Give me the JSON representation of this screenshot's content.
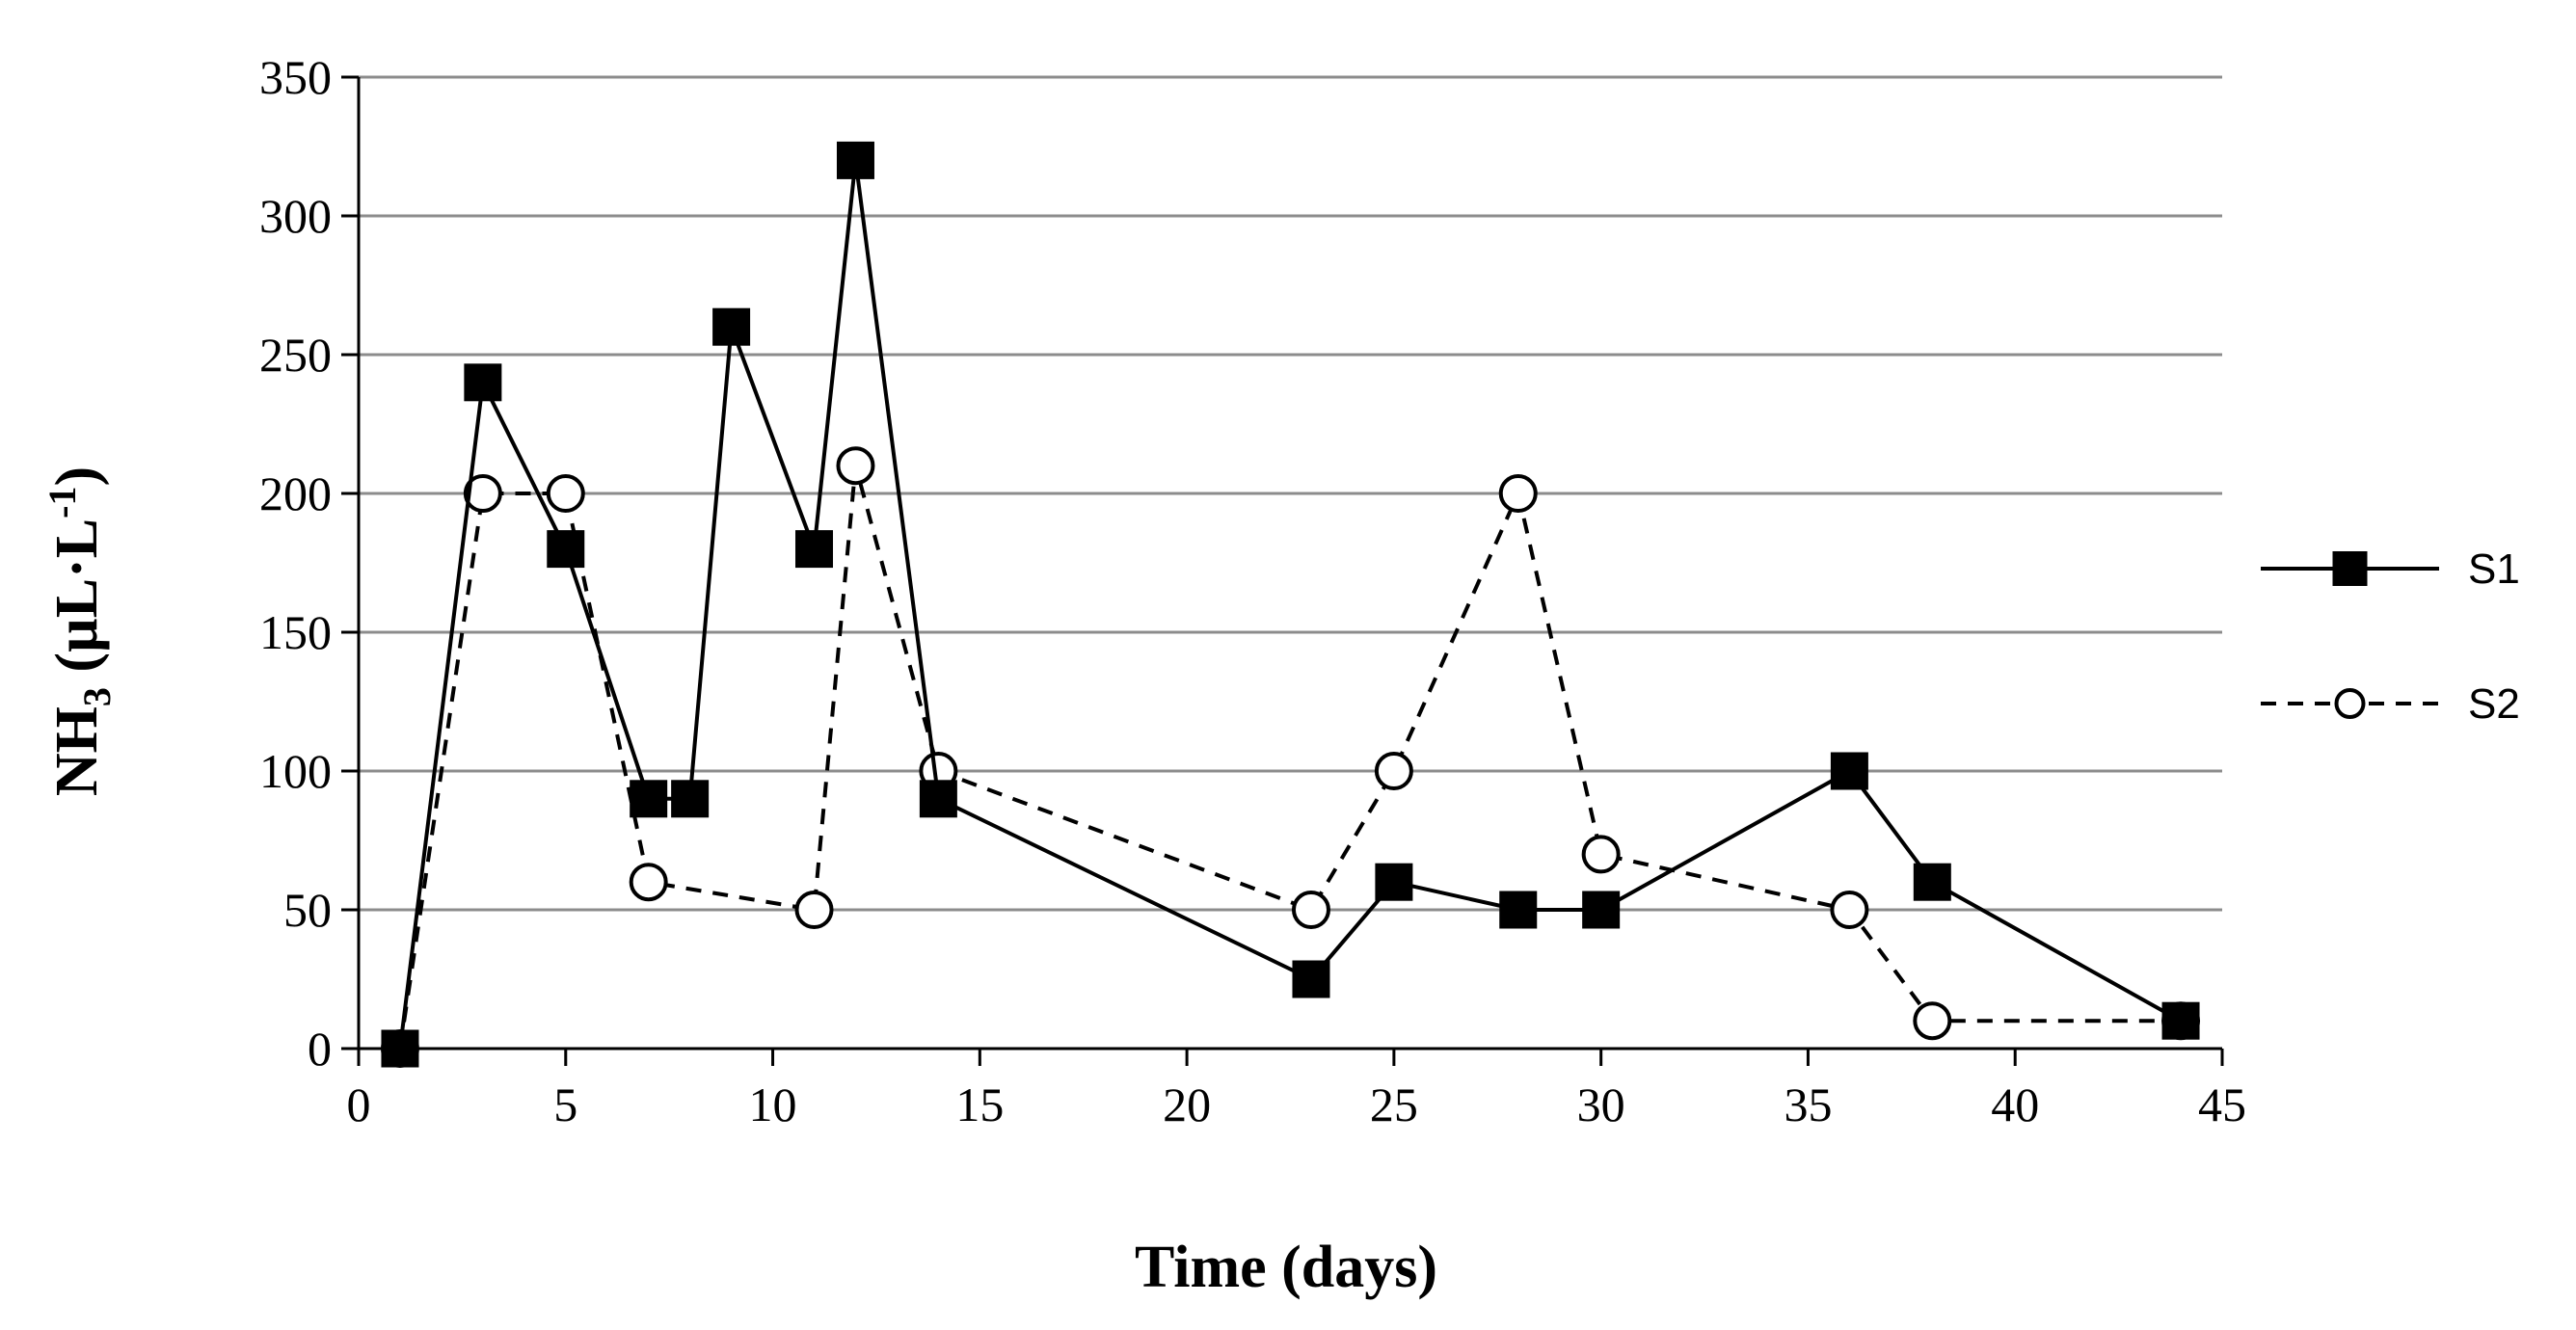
{
  "chart_data": {
    "type": "line",
    "title": "",
    "xlabel": "Time (days)",
    "ylabel": {
      "prefix": "NH",
      "sub": "3",
      "mid": " (µL·L",
      "sup": "-1",
      "suffix": ")"
    },
    "xlim": [
      0,
      45
    ],
    "ylim": [
      0,
      350
    ],
    "xticks": [
      0,
      5,
      10,
      15,
      20,
      25,
      30,
      35,
      40,
      45
    ],
    "yticks": [
      0,
      50,
      100,
      150,
      200,
      250,
      300,
      350
    ],
    "grid": "horizontal",
    "legend_position": "right",
    "series": [
      {
        "name": "S1",
        "style": "solid",
        "marker": "filled-square",
        "color": "#000000",
        "x": [
          1,
          3,
          5,
          7,
          8,
          9,
          11,
          12,
          14,
          23,
          25,
          28,
          30,
          36,
          38,
          44
        ],
        "y": [
          0,
          240,
          180,
          90,
          90,
          260,
          180,
          320,
          90,
          25,
          60,
          50,
          50,
          100,
          60,
          10
        ]
      },
      {
        "name": "S2",
        "style": "dashed",
        "marker": "open-circle",
        "color": "#000000",
        "x": [
          1,
          3,
          5,
          7,
          11,
          12,
          14,
          23,
          25,
          28,
          30,
          36,
          38,
          44
        ],
        "y": [
          0,
          200,
          200,
          60,
          50,
          210,
          100,
          50,
          100,
          200,
          70,
          50,
          10,
          10
        ]
      }
    ]
  }
}
